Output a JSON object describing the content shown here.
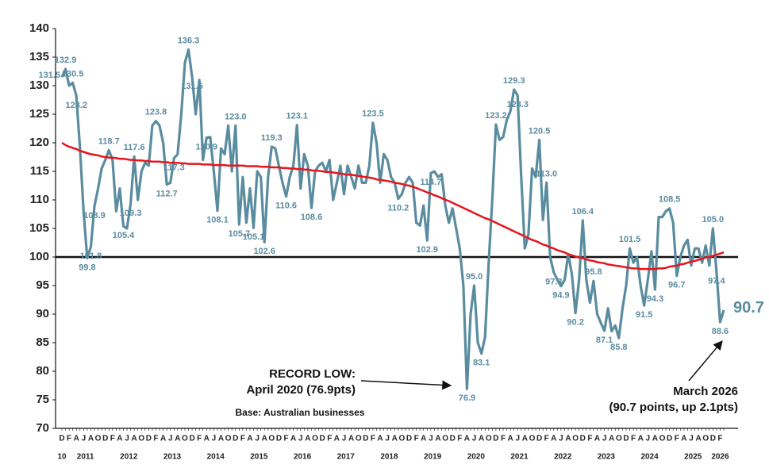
{
  "chart_data": {
    "type": "line",
    "categories": [
      "D",
      null,
      "F",
      null,
      "A",
      null,
      "J",
      null,
      "A",
      null,
      "O",
      null,
      "D",
      null,
      "F",
      null,
      "A",
      null,
      "J",
      null,
      "A",
      null,
      "O",
      null,
      "D",
      null,
      "F",
      null,
      "A",
      null,
      "J",
      null,
      "A",
      null,
      "O",
      null,
      "D",
      null,
      "F",
      null,
      "A",
      null,
      "J",
      null,
      "A",
      null,
      "O",
      null,
      "D",
      null,
      "F",
      null,
      "A",
      null,
      "J",
      null,
      "A",
      null,
      "O",
      null,
      "D",
      null,
      "F",
      null,
      "A",
      null,
      "J",
      null,
      "A",
      null,
      "O",
      null,
      "D",
      null,
      "F",
      null,
      "A",
      null,
      "J",
      null,
      "A",
      null,
      "O",
      null,
      "D",
      null,
      "F",
      null,
      "A",
      null,
      "J",
      null,
      "A",
      null,
      "O",
      null,
      "D",
      null,
      "F",
      null,
      "A",
      null,
      "J",
      null,
      "A",
      null,
      "O",
      null,
      "D",
      null,
      "F",
      null,
      "A",
      null,
      "J",
      null,
      "A",
      null,
      "O",
      null,
      "D",
      null,
      "F",
      null,
      "A",
      null,
      "J",
      null,
      "A",
      null,
      "O",
      null,
      "D",
      null,
      "F",
      null,
      "A",
      null,
      "J",
      null,
      "A",
      null,
      "O",
      null,
      "D",
      null,
      "F",
      null,
      "A",
      null,
      "J",
      null,
      "A",
      null,
      "O",
      null,
      "D",
      null,
      "F",
      null,
      "A",
      null,
      "J",
      null,
      "A",
      null,
      "O",
      null,
      "D",
      null,
      "F",
      null,
      "A",
      null,
      "J",
      null,
      "A",
      null,
      "O",
      null,
      "D",
      null,
      "F",
      null
    ],
    "years": [
      "10",
      "2011",
      "2012",
      "2013",
      "2014",
      "2015",
      "2016",
      "2017",
      "2018",
      "2019",
      "2020",
      "2021",
      "2022",
      "2023",
      "2024",
      "2025",
      "2026"
    ],
    "series": [
      {
        "color": "#5a8ca0",
        "values": [
          131.5,
          132.9,
          130,
          130.5,
          128.2,
          119,
          108,
          99.8,
          101.8,
          108.9,
          112,
          115.5,
          117,
          118.7,
          117,
          108,
          112,
          105.4,
          105,
          109.3,
          117.6,
          110,
          115,
          116.5,
          116,
          123,
          123.8,
          123,
          120,
          112.7,
          113,
          117.3,
          118,
          125,
          134,
          136.3,
          131.5,
          125,
          131,
          117,
          120.9,
          121,
          115,
          108.1,
          119,
          118,
          123,
          115,
          123.0,
          105.7,
          114,
          106,
          112,
          105.1,
          115,
          114,
          102.6,
          114,
          119.3,
          119,
          116,
          113,
          110.6,
          114,
          116,
          123.1,
          112,
          118,
          116,
          108.6,
          115,
          116,
          116.5,
          115,
          117,
          110,
          113,
          116,
          111,
          116,
          114,
          112,
          116,
          113,
          113,
          116,
          123.5,
          120,
          113,
          118,
          117,
          114,
          113,
          110.2,
          111,
          113,
          114,
          113,
          106,
          105.5,
          109,
          102.9,
          114.7,
          115,
          114,
          114.5,
          109,
          106,
          108.5,
          105,
          101.5,
          95,
          76.9,
          90,
          95.0,
          85,
          83.1,
          86,
          99,
          110,
          123.2,
          120.5,
          121,
          124,
          125.5,
          129.3,
          128.3,
          114,
          101.5,
          104,
          115.5,
          114,
          120.5,
          106.5,
          113.0,
          100,
          97.3,
          96,
          94.9,
          96,
          100.5,
          97,
          90.2,
          96,
          106.4,
          96,
          92,
          95.8,
          90,
          88.5,
          87.1,
          91,
          87,
          88,
          85.8,
          91,
          95,
          101.5,
          99,
          100,
          95,
          91.5,
          96,
          101,
          94.3,
          107,
          107,
          108,
          108.5,
          106,
          96.7,
          100,
          102,
          103,
          98.5,
          101.5,
          101.5,
          99,
          102,
          98.5,
          105.0,
          97.4,
          88.6,
          90.7
        ],
        "value_labels": [
          "131.5",
          "132.9",
          null,
          "130.5",
          "128.2",
          null,
          null,
          "99.8",
          "101.8",
          "108.9",
          null,
          null,
          null,
          "118.7",
          null,
          null,
          null,
          "105.4",
          null,
          "109.3",
          "117.6",
          null,
          null,
          null,
          null,
          null,
          "123.8",
          null,
          null,
          "112.7",
          null,
          "117.3",
          null,
          null,
          null,
          "136.3",
          "131.5",
          null,
          null,
          null,
          "120.9",
          null,
          null,
          "108.1",
          null,
          null,
          null,
          null,
          "123.0",
          "105.7",
          null,
          null,
          null,
          "105.1",
          null,
          null,
          "102.6",
          null,
          "119.3",
          null,
          null,
          null,
          "110.6",
          null,
          null,
          "123.1",
          null,
          null,
          null,
          "108.6",
          null,
          null,
          null,
          null,
          null,
          null,
          null,
          null,
          null,
          null,
          null,
          null,
          null,
          null,
          null,
          null,
          "123.5",
          null,
          null,
          null,
          null,
          null,
          null,
          "110.2",
          null,
          null,
          null,
          null,
          null,
          null,
          null,
          "102.9",
          "114.7",
          null,
          null,
          null,
          null,
          null,
          null,
          null,
          null,
          null,
          "76.9",
          null,
          "95.0",
          null,
          "83.1",
          null,
          null,
          null,
          "123.2",
          null,
          null,
          null,
          null,
          "129.3",
          "128.3",
          null,
          null,
          null,
          null,
          null,
          "120.5",
          null,
          "113.0",
          null,
          "97.3",
          null,
          "94.9",
          null,
          null,
          null,
          "90.2",
          null,
          "106.4",
          null,
          null,
          "95.8",
          null,
          null,
          "87.1",
          null,
          null,
          null,
          "85.8",
          null,
          null,
          "101.5",
          null,
          null,
          null,
          "91.5",
          null,
          null,
          "94.3",
          null,
          null,
          null,
          "108.5",
          null,
          "96.7",
          null,
          null,
          null,
          null,
          null,
          null,
          null,
          null,
          null,
          "105.0",
          "97.4",
          "88.6",
          "90.7"
        ]
      }
    ],
    "trend": {
      "color": "#e8141b",
      "values": [
        120.0,
        119.6,
        119.3,
        119.1,
        118.9,
        118.6,
        118.4,
        118.2,
        118.0,
        117.9,
        117.8,
        117.6,
        117.5,
        117.4,
        117.4,
        117.3,
        117.2,
        117.2,
        117.1,
        117.0,
        117.0,
        116.9,
        116.9,
        116.8,
        116.8,
        116.7,
        116.7,
        116.7,
        116.6,
        116.6,
        116.5,
        116.5,
        116.5,
        116.4,
        116.4,
        116.3,
        116.3,
        116.3,
        116.3,
        116.2,
        116.2,
        116.2,
        116.1,
        116.1,
        116.1,
        116.1,
        116.0,
        116.0,
        116.0,
        116.0,
        116.0,
        115.9,
        115.9,
        115.9,
        115.9,
        115.8,
        115.8,
        115.8,
        115.7,
        115.7,
        115.7,
        115.6,
        115.6,
        115.5,
        115.5,
        115.4,
        115.4,
        115.3,
        115.3,
        115.2,
        115.1,
        115.1,
        115.0,
        114.9,
        114.9,
        114.8,
        114.7,
        114.6,
        114.5,
        114.4,
        114.4,
        114.3,
        114.2,
        114.1,
        114.0,
        113.9,
        113.8,
        113.6,
        113.5,
        113.4,
        113.3,
        113.2,
        113.0,
        112.9,
        112.8,
        112.6,
        112.5,
        112.3,
        112.1,
        111.8,
        111.6,
        111.3,
        111.1,
        110.8,
        110.6,
        110.3,
        110.0,
        109.8,
        109.5,
        109.2,
        108.9,
        108.6,
        108.3,
        108.0,
        107.7,
        107.4,
        107.1,
        106.8,
        106.6,
        106.3,
        106.0,
        105.7,
        105.4,
        105.1,
        104.8,
        104.5,
        104.2,
        103.9,
        103.6,
        103.3,
        103.0,
        102.8,
        102.5,
        102.2,
        102.0,
        101.7,
        101.5,
        101.2,
        101.0,
        100.8,
        100.5,
        100.3,
        100.1,
        99.9,
        99.8,
        99.6,
        99.4,
        99.3,
        99.1,
        99.0,
        98.9,
        98.7,
        98.6,
        98.5,
        98.4,
        98.3,
        98.2,
        98.1,
        98.0,
        98.0,
        97.9,
        97.9,
        97.9,
        97.9,
        97.9,
        98.0,
        98.0,
        98.1,
        98.3,
        98.4,
        98.5,
        98.7,
        98.8,
        99.0,
        99.2,
        99.3,
        99.5,
        99.7,
        99.9,
        100.0,
        100.2,
        100.4,
        100.6,
        100.8
      ]
    },
    "reference_line": 100,
    "ylim": [
      70,
      140
    ],
    "yticks": [
      70,
      75,
      80,
      85,
      90,
      95,
      100,
      105,
      110,
      115,
      120,
      125,
      130,
      135,
      140
    ],
    "annotations": {
      "record_low": [
        "RECORD LOW:",
        "April 2020 (76.9pts)"
      ],
      "base": "Base: Australian businesses",
      "latest": [
        "March 2026",
        "(90.7 points, up 2.1pts)"
      ]
    }
  }
}
